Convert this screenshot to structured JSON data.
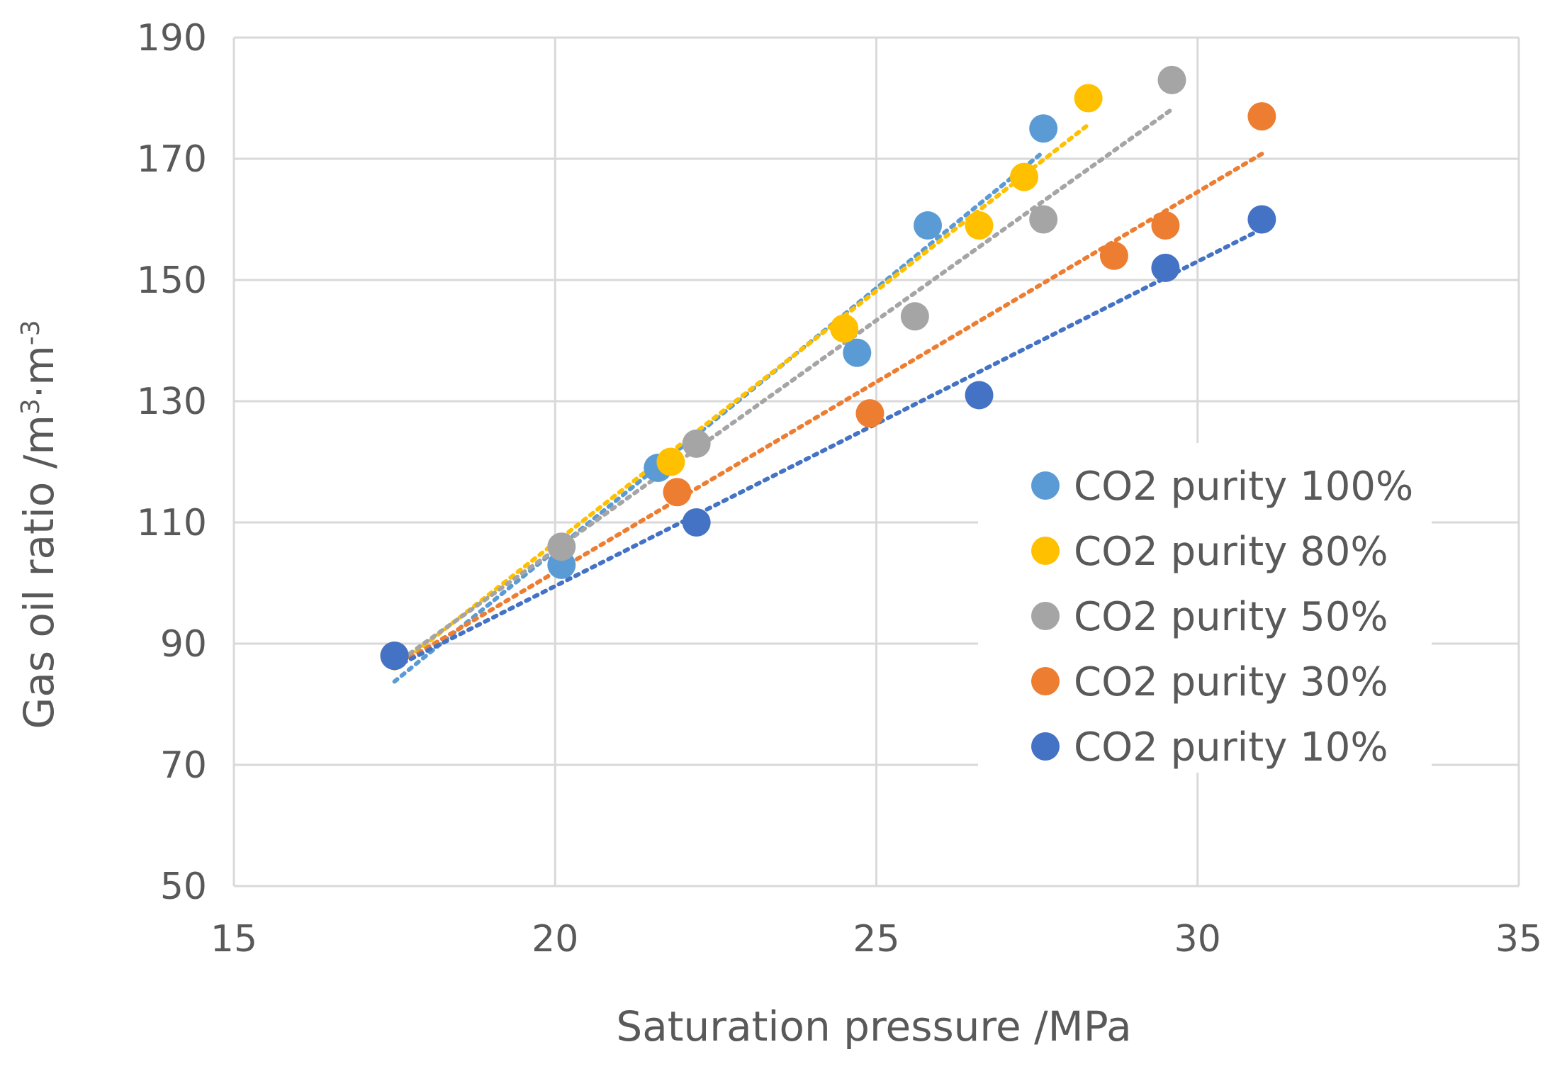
{
  "chart_data": {
    "type": "scatter",
    "title": "",
    "xlabel": "Saturation pressure /MPa",
    "ylabel": {
      "prefix": "Gas oil ratio /m",
      "sup1": "3",
      "middle": "·m",
      "sup2": "-3"
    },
    "xlim": [
      15,
      35
    ],
    "ylim": [
      50,
      190
    ],
    "xticks": [
      15,
      20,
      25,
      30,
      35
    ],
    "yticks": [
      50,
      70,
      90,
      110,
      130,
      150,
      170,
      190
    ],
    "grid": true,
    "trendline": "dotted linear",
    "legend_position": "right, middle",
    "series": [
      {
        "name": "CO2 purity 100%",
        "color": "#5B9BD5",
        "x": [
          17.5,
          20.1,
          21.6,
          24.7,
          25.8,
          27.6
        ],
        "y": [
          88,
          103,
          119,
          138,
          159,
          175
        ]
      },
      {
        "name": "CO2 purity 80%",
        "color": "#FFC000",
        "x": [
          17.5,
          21.8,
          24.5,
          26.6,
          27.3,
          28.3
        ],
        "y": [
          88,
          120,
          142,
          159,
          167,
          180
        ]
      },
      {
        "name": "CO2 purity 50%",
        "color": "#A5A5A5",
        "x": [
          17.5,
          20.1,
          22.2,
          25.6,
          27.6,
          29.6
        ],
        "y": [
          88,
          106,
          123,
          144,
          160,
          183
        ]
      },
      {
        "name": "CO2 purity 30%",
        "color": "#ED7D31",
        "x": [
          17.5,
          21.9,
          24.9,
          28.7,
          29.5,
          31.0
        ],
        "y": [
          88,
          115,
          128,
          154,
          159,
          177
        ]
      },
      {
        "name": "CO2 purity 10%",
        "color": "#4472C4",
        "x": [
          17.5,
          22.2,
          26.6,
          29.5,
          31.0
        ],
        "y": [
          88,
          110,
          131,
          152,
          160
        ]
      }
    ]
  }
}
